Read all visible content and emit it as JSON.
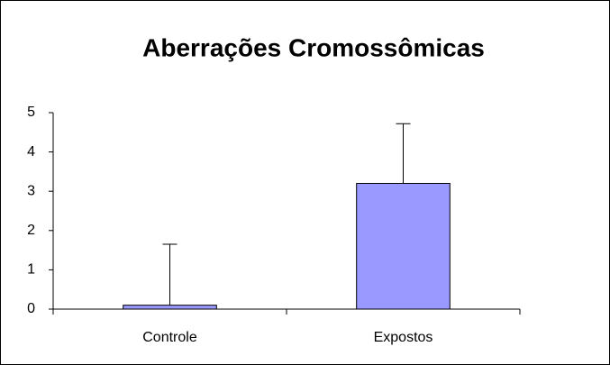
{
  "chart_data": {
    "type": "bar",
    "title": "Aberrações Cromossômicas",
    "categories": [
      "Controle",
      "Expostos"
    ],
    "values": [
      0.1,
      3.2
    ],
    "errors": [
      1.55,
      1.52
    ],
    "color": "#9999ff",
    "ylim": [
      0,
      5
    ],
    "yticks": [
      0,
      1,
      2,
      3,
      4,
      5
    ],
    "grid": false
  }
}
